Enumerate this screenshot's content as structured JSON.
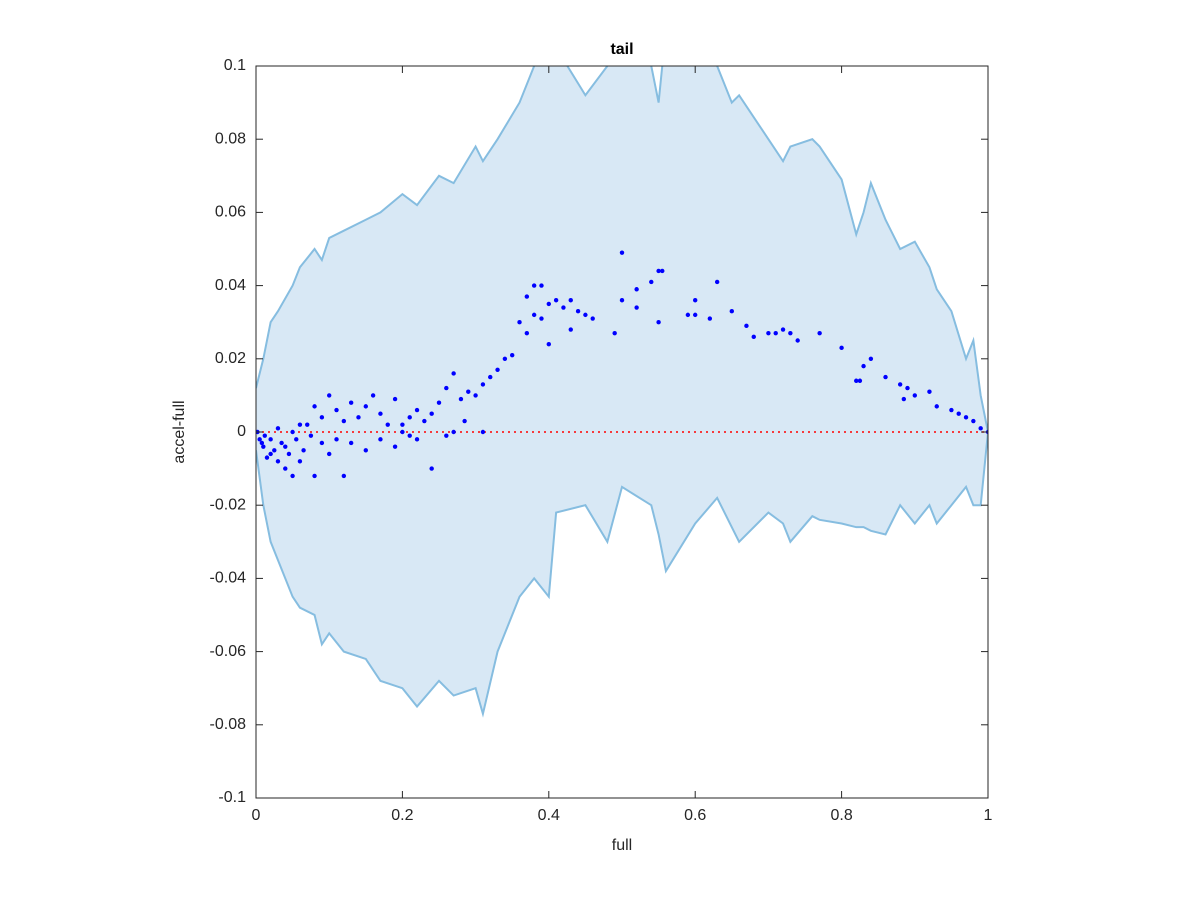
{
  "chart_data": {
    "type": "scatter",
    "title": "tail",
    "xlabel": "full",
    "ylabel": "accel-full",
    "xlim": [
      0,
      1
    ],
    "ylim": [
      -0.1,
      0.1
    ],
    "xticks": [
      0,
      0.2,
      0.4,
      0.6,
      0.8,
      1
    ],
    "yticks": [
      -0.1,
      -0.08,
      -0.06,
      -0.04,
      -0.02,
      0,
      0.02,
      0.04,
      0.06,
      0.08,
      0.1
    ],
    "band": {
      "line_color": "#86bde0",
      "fill_color": "#d8e8f5",
      "x": [
        0,
        0.01,
        0.02,
        0.03,
        0.05,
        0.06,
        0.08,
        0.09,
        0.1,
        0.12,
        0.15,
        0.17,
        0.2,
        0.22,
        0.25,
        0.27,
        0.3,
        0.31,
        0.33,
        0.36,
        0.38,
        0.4,
        0.41,
        0.45,
        0.48,
        0.5,
        0.54,
        0.55,
        0.56,
        0.6,
        0.63,
        0.65,
        0.66,
        0.7,
        0.72,
        0.73,
        0.76,
        0.77,
        0.8,
        0.82,
        0.83,
        0.84,
        0.86,
        0.88,
        0.9,
        0.92,
        0.93,
        0.95,
        0.97,
        0.98,
        0.99,
        1
      ],
      "upper": [
        0.012,
        0.02,
        0.03,
        0.033,
        0.04,
        0.045,
        0.05,
        0.047,
        0.053,
        0.055,
        0.058,
        0.06,
        0.065,
        0.062,
        0.07,
        0.068,
        0.078,
        0.074,
        0.08,
        0.09,
        0.1,
        0.11,
        0.105,
        0.092,
        0.1,
        0.105,
        0.1,
        0.09,
        0.11,
        0.11,
        0.1,
        0.09,
        0.092,
        0.08,
        0.074,
        0.078,
        0.08,
        0.078,
        0.069,
        0.054,
        0.06,
        0.068,
        0.058,
        0.05,
        0.052,
        0.045,
        0.039,
        0.033,
        0.02,
        0.025,
        0.01,
        0
      ],
      "lower": [
        -0.005,
        -0.02,
        -0.03,
        -0.035,
        -0.045,
        -0.048,
        -0.05,
        -0.058,
        -0.055,
        -0.06,
        -0.062,
        -0.068,
        -0.07,
        -0.075,
        -0.068,
        -0.072,
        -0.07,
        -0.077,
        -0.06,
        -0.045,
        -0.04,
        -0.045,
        -0.022,
        -0.02,
        -0.03,
        -0.015,
        -0.02,
        -0.028,
        -0.038,
        -0.025,
        -0.018,
        -0.026,
        -0.03,
        -0.022,
        -0.025,
        -0.03,
        -0.023,
        -0.024,
        -0.025,
        -0.026,
        -0.026,
        -0.027,
        -0.028,
        -0.02,
        -0.025,
        -0.02,
        -0.025,
        -0.02,
        -0.015,
        -0.02,
        -0.02,
        0
      ]
    },
    "reference_line": {
      "y": 0,
      "color": "#ff0000"
    },
    "series": [
      {
        "color": "#0000ff",
        "x": [
          0.5,
          0.555,
          0.55,
          0.63,
          0.6,
          0.54,
          0.52,
          0.5,
          0.49,
          0.52,
          0.55,
          0.59,
          0.6,
          0.62,
          0.65,
          0.67,
          0.68,
          0.7,
          0.71,
          0.72,
          0.73,
          0.74,
          0.77,
          0.8,
          0.83,
          0.84,
          0.82,
          0.825,
          0.86,
          0.88,
          0.89,
          0.9,
          0.92,
          0.885,
          0.93,
          0.95,
          0.96,
          0.97,
          0.98,
          0.99,
          1,
          0.38,
          0.39,
          0.37,
          0.4,
          0.41,
          0.42,
          0.43,
          0.44,
          0.45,
          0.46,
          0.43,
          0.4,
          0.36,
          0.37,
          0.38,
          0.39,
          0.35,
          0.34,
          0.33,
          0.32,
          0.31,
          0.3,
          0.29,
          0.28,
          0.27,
          0.26,
          0.25,
          0.24,
          0.23,
          0.22,
          0.21,
          0.2,
          0.19,
          0.18,
          0.17,
          0.16,
          0.15,
          0.14,
          0.13,
          0.12,
          0.11,
          0.1,
          0.09,
          0.08,
          0.07,
          0.31,
          0.24,
          0.19,
          0.15,
          0.12,
          0.1,
          0.08,
          0.06,
          0.05,
          0.04,
          0.03,
          0.02,
          0.01,
          0.005,
          0.015,
          0.025,
          0.035,
          0.045,
          0.055,
          0.065,
          0.075,
          0.09,
          0.11,
          0.13,
          0.17,
          0.21,
          0.26,
          0.002,
          0.008,
          0.012,
          0.02,
          0.03,
          0.04,
          0.05,
          0.06,
          0.285,
          0.27,
          0.22,
          0.2
        ],
        "values": [
          0.049,
          0.044,
          0.044,
          0.041,
          0.036,
          0.041,
          0.039,
          0.036,
          0.027,
          0.034,
          0.03,
          0.032,
          0.032,
          0.031,
          0.033,
          0.029,
          0.026,
          0.027,
          0.027,
          0.028,
          0.027,
          0.025,
          0.027,
          0.023,
          0.018,
          0.02,
          0.014,
          0.014,
          0.015,
          0.013,
          0.012,
          0.01,
          0.011,
          0.009,
          0.007,
          0.006,
          0.005,
          0.004,
          0.003,
          0.001,
          0,
          0.04,
          0.04,
          0.037,
          0.035,
          0.036,
          0.034,
          0.036,
          0.033,
          0.032,
          0.031,
          0.028,
          0.024,
          0.03,
          0.027,
          0.032,
          0.031,
          0.021,
          0.02,
          0.017,
          0.015,
          0.013,
          0.01,
          0.011,
          0.009,
          0.016,
          0.012,
          0.008,
          0.005,
          0.003,
          0.006,
          0.004,
          0.002,
          0.009,
          0.002,
          0.005,
          0.01,
          0.007,
          0.004,
          0.008,
          0.003,
          0.006,
          0.01,
          0.004,
          0.007,
          0.002,
          0,
          -0.01,
          -0.004,
          -0.005,
          -0.012,
          -0.006,
          -0.012,
          -0.008,
          -0.012,
          -0.01,
          -0.008,
          -0.006,
          -0.004,
          -0.002,
          -0.007,
          -0.005,
          -0.003,
          -0.006,
          -0.002,
          -0.005,
          -0.001,
          -0.003,
          -0.002,
          -0.003,
          -0.002,
          -0.001,
          -0.001,
          0,
          -0.003,
          -0.001,
          -0.002,
          0.001,
          -0.004,
          0,
          0.002,
          0.003,
          0,
          -0.002,
          0
        ]
      }
    ]
  }
}
